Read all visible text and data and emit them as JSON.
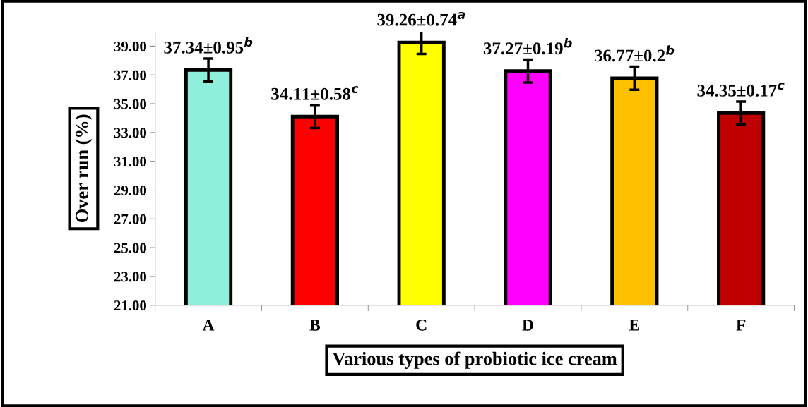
{
  "chart_data": {
    "type": "bar",
    "xlabel": "Various types of probiotic ice cream",
    "ylabel": "Over run (%)",
    "categories": [
      "A",
      "B",
      "C",
      "D",
      "E",
      "F"
    ],
    "values": [
      37.34,
      34.11,
      39.26,
      37.27,
      36.77,
      34.35
    ],
    "colors": [
      "#8ef0da",
      "#ff0000",
      "#ffff00",
      "#ff00ff",
      "#ffc000",
      "#c00000"
    ],
    "errors": [
      0.8,
      0.8,
      0.8,
      0.8,
      0.8,
      0.8
    ],
    "value_labels": [
      "37.34±0.95$^{b}$",
      "34.11±0.58$^{c}$",
      "39.26±0.74$^{a}$",
      "37.27±0.19$^{b}$",
      "36.77±0.2$^{b}$",
      "34.35±0.17$^{c}$"
    ],
    "ylim": [
      21,
      40
    ],
    "yticks": [
      {
        "value": 21,
        "label": "21.00"
      },
      {
        "value": 23,
        "label": "23.00"
      },
      {
        "value": 25,
        "label": "25.00"
      },
      {
        "value": 27,
        "label": "27.00"
      },
      {
        "value": 29,
        "label": "29.00"
      },
      {
        "value": 31,
        "label": "31.00"
      },
      {
        "value": 33,
        "label": "33.00"
      },
      {
        "value": 35,
        "label": "35.00"
      },
      {
        "value": 37,
        "label": "37.00"
      },
      {
        "value": 39,
        "label": "39.00"
      }
    ],
    "grid": false,
    "legend": false
  }
}
